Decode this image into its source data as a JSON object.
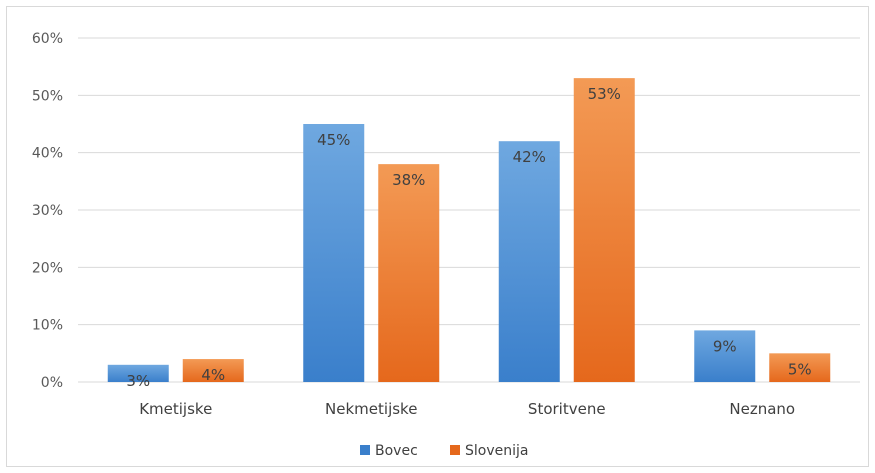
{
  "chart_data": {
    "type": "bar",
    "categories": [
      "Kmetijske",
      "Nekmetijske",
      "Storitvene",
      "Neznano"
    ],
    "series": [
      {
        "name": "Bovec",
        "values": [
          3,
          45,
          42,
          9
        ],
        "labels": [
          "3%",
          "45%",
          "42%",
          "9%"
        ]
      },
      {
        "name": "Slovenija",
        "values": [
          4,
          38,
          53,
          5
        ],
        "labels": [
          "4%",
          "38%",
          "53%",
          "5%"
        ]
      }
    ],
    "ylim": [
      0,
      60
    ],
    "yticks": [
      0,
      10,
      20,
      30,
      40,
      50,
      60
    ],
    "ytick_labels": [
      "0%",
      "10%",
      "20%",
      "30%",
      "40%",
      "50%",
      "60%"
    ],
    "grid": true,
    "legend_position": "bottom",
    "colors": {
      "Bovec_top": "#6fa8e0",
      "Bovec_bottom": "#3a7fcb",
      "Slovenija_top": "#f39a55",
      "Slovenija_bottom": "#e5681c",
      "grid": "#d9d9d9"
    }
  }
}
